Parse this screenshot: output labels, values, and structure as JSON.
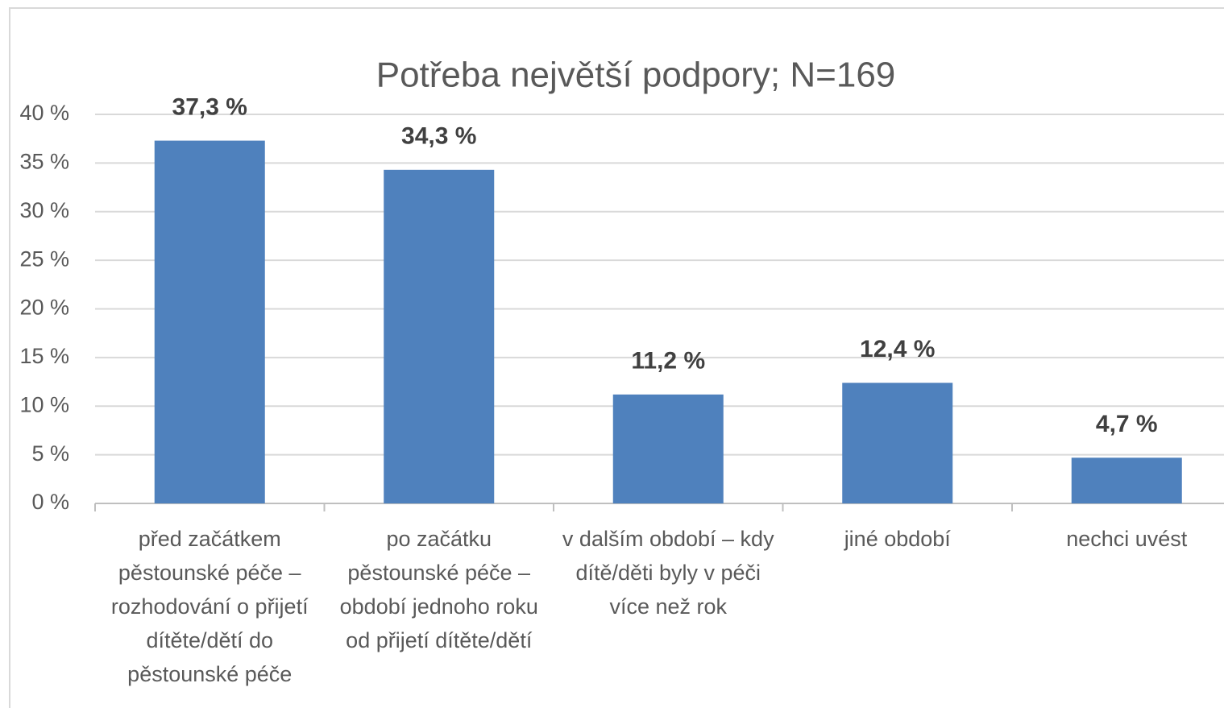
{
  "chart_data": {
    "type": "bar",
    "title": "Potřeba největší podpory; N=169",
    "categories": [
      "před začátkem pěstounské péče – rozhodování o přijetí dítěte/dětí do pěstounské péče",
      "po začátku pěstounské péče – období jednoho roku od přijetí dítěte/dětí",
      "v dalším období – kdy dítě/děti byly v péči více než rok",
      "jiné období",
      "nechci uvést"
    ],
    "values": [
      37.3,
      34.3,
      11.2,
      12.4,
      4.7
    ],
    "value_labels": [
      "37,3 %",
      "34,3 %",
      "11,2 %",
      "12,4 %",
      "4,7 %"
    ],
    "color": "#4f81bd",
    "ylim": [
      0,
      40
    ],
    "yticks": [
      {
        "value": 0,
        "label": "0 %"
      },
      {
        "value": 5,
        "label": "5 %"
      },
      {
        "value": 10,
        "label": "10 %"
      },
      {
        "value": 15,
        "label": "15 %"
      },
      {
        "value": 20,
        "label": "20 %"
      },
      {
        "value": 25,
        "label": "25 %"
      },
      {
        "value": 30,
        "label": "30 %"
      },
      {
        "value": 35,
        "label": "35 %"
      },
      {
        "value": 40,
        "label": "40 %"
      }
    ],
    "grid": true
  }
}
